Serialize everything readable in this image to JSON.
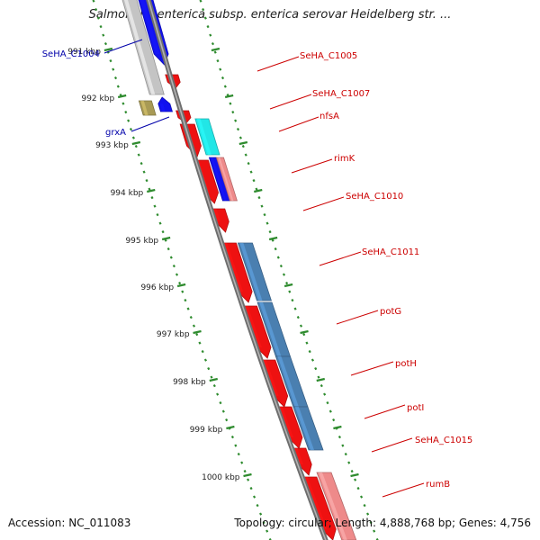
{
  "title": "Salmonella enterica subsp. enterica serovar Heidelberg str. ...",
  "footer": {
    "accession": "Accession: NC_011083",
    "summary": "Topology: circular; Length: 4,888,768 bp; Genes: 4,756"
  },
  "colors": {
    "backbone": "#8c8c8c",
    "tick": "#2e8b2e",
    "forward_gene": "#ee1111",
    "forward_label": "#cc0000",
    "reverse_label": "#0000aa",
    "blue_gene": "#1111ee",
    "steelblue_feature": "#4a7fb0",
    "cyan_feature": "#22e6e6",
    "pink_feature": "#ee8a8a",
    "olive_gene": "#a89a55",
    "grey_feature": "#c4c4c4"
  },
  "scale": {
    "unit": "kbp",
    "ticks": [
      "991 kbp",
      "992 kbp",
      "993 kbp",
      "994 kbp",
      "995 kbp",
      "996 kbp",
      "997 kbp",
      "998 kbp",
      "999 kbp",
      "1000 kbp"
    ]
  },
  "gene_labels": [
    {
      "text": "SeHA_C1004",
      "strand": "reverse"
    },
    {
      "text": "grxA",
      "strand": "reverse"
    },
    {
      "text": "SeHA_C1005",
      "strand": "forward"
    },
    {
      "text": "SeHA_C1007",
      "strand": "forward"
    },
    {
      "text": "nfsA",
      "strand": "forward"
    },
    {
      "text": "rimK",
      "strand": "forward"
    },
    {
      "text": "SeHA_C1010",
      "strand": "forward"
    },
    {
      "text": "SeHA_C1011",
      "strand": "forward"
    },
    {
      "text": "potG",
      "strand": "forward"
    },
    {
      "text": "potH",
      "strand": "forward"
    },
    {
      "text": "potI",
      "strand": "forward"
    },
    {
      "text": "SeHA_C1015",
      "strand": "forward"
    },
    {
      "text": "rumB",
      "strand": "forward"
    }
  ]
}
